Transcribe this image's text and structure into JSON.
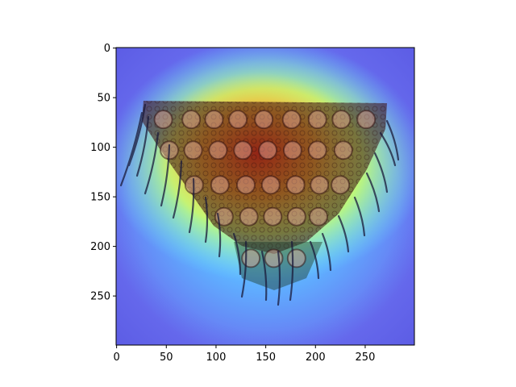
{
  "chart_data": {
    "type": "heatmap",
    "title": "",
    "xlabel": "",
    "ylabel": "",
    "xlim": [
      0,
      299
    ],
    "ylim": [
      299,
      0
    ],
    "x_ticks": [
      0,
      50,
      100,
      150,
      200,
      250
    ],
    "y_ticks": [
      0,
      50,
      100,
      150,
      200,
      250
    ],
    "colormap": "jet",
    "overlay": "attention heatmap over photo of crocheted granny-square triangular shawl with fringe",
    "hotspots": [
      {
        "x": 175,
        "y": 125,
        "intensity": 1.0
      },
      {
        "x": 120,
        "y": 110,
        "intensity": 0.9
      },
      {
        "x": 160,
        "y": 170,
        "intensity": 0.85
      },
      {
        "x": 230,
        "y": 120,
        "intensity": 0.55
      },
      {
        "x": 60,
        "y": 110,
        "intensity": 0.5
      }
    ],
    "colors": {
      "background": "#ffffff",
      "axis": "#000000",
      "cold": "#6a6ff0",
      "hot": "#d10a12"
    }
  }
}
